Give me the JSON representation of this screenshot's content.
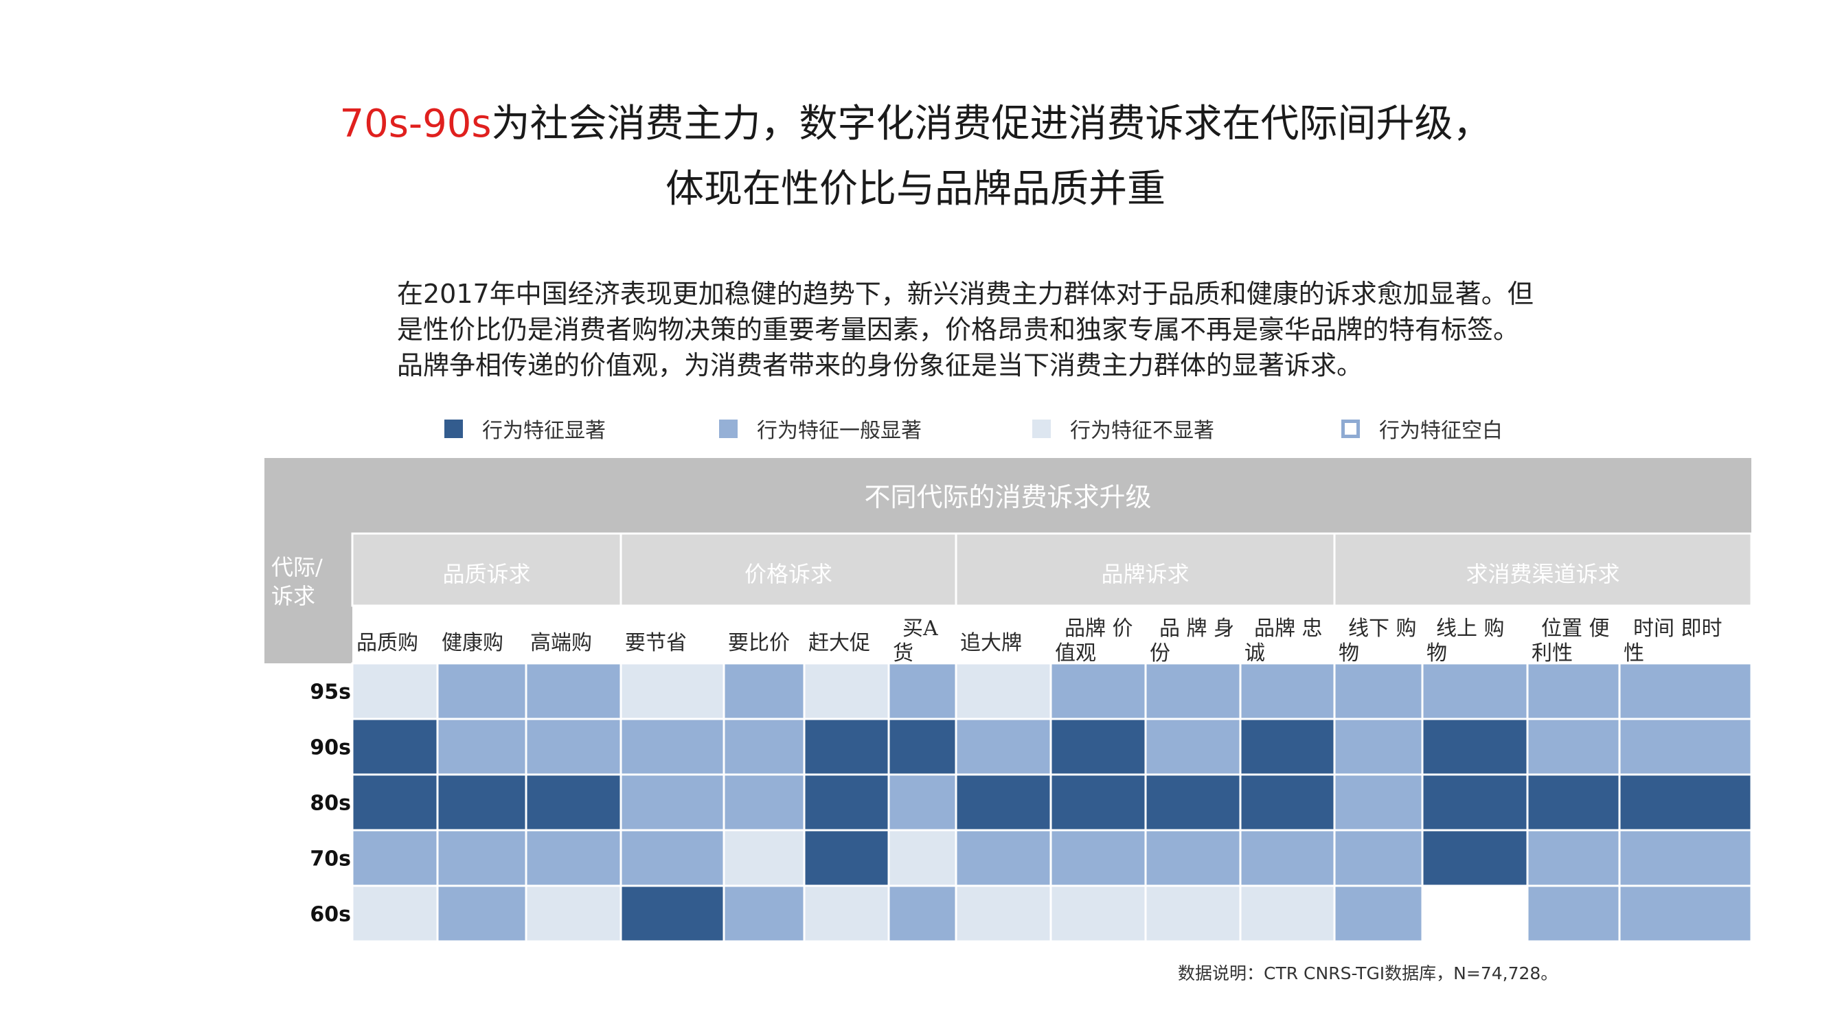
{
  "title": {
    "highlight": "70s-90s",
    "line1_rest": "为社会消费主力，数字化消费促进消费诉求在代际间升级，",
    "line2": "体现在性价比与品牌品质并重"
  },
  "intro": [
    "在2017年中国经济表现更加稳健的趋势下，新兴消费主力群体对于品质和健康的诉求愈加显著。但",
    "是性价比仍是消费者购物决策的重要考量因素，价格昂贵和独家专属不再是豪华品牌的特有标签。",
    "品牌争相传递的价值观，为消费者带来的身份象征是当下消费主力群体的显著诉求。"
  ],
  "legend": [
    {
      "label": "行为特征显著",
      "level": 3
    },
    {
      "label": "行为特征一般显著",
      "level": 2
    },
    {
      "label": "行为特征不显著",
      "level": 1
    },
    {
      "label": "行为特征空白",
      "level": 0
    }
  ],
  "colors": {
    "level3": "#335c8e",
    "level2": "#95b0d6",
    "level1": "#dde6f0",
    "level0": "#ffffff",
    "empty_swatch_border": "#8eaad2",
    "header_bg": "#bfbfbf",
    "subheader_bg": "#d9d9d9",
    "title_accent": "#e0201e"
  },
  "chart_data": {
    "type": "heatmap",
    "title": "不同代际的消费诉求升级",
    "corner_label": [
      "代际/",
      "诉求"
    ],
    "groups": [
      {
        "name": "品质诉求",
        "span": 3
      },
      {
        "name": "价格诉求",
        "span": 4
      },
      {
        "name": "品牌诉求",
        "span": 4
      },
      {
        "name": "求消费渠道诉求",
        "span": 4
      }
    ],
    "columns": [
      [
        "品质购"
      ],
      [
        "健康购"
      ],
      [
        "高端购"
      ],
      [
        "要节省"
      ],
      [
        "要比价"
      ],
      [
        "赶大促"
      ],
      [
        "买A",
        "货"
      ],
      [
        "追大牌"
      ],
      [
        "品牌 价",
        "值观"
      ],
      [
        "品 牌 身",
        "份"
      ],
      [
        "品牌 忠",
        "诚"
      ],
      [
        "线下 购",
        "物"
      ],
      [
        "线上 购",
        "物"
      ],
      [
        "位置 便",
        "利性"
      ],
      [
        "时间 即时",
        "性"
      ]
    ],
    "rows": [
      "95s",
      "90s",
      "80s",
      "70s",
      "60s"
    ],
    "values": [
      [
        1,
        2,
        2,
        1,
        2,
        1,
        2,
        1,
        2,
        2,
        2,
        2,
        2,
        2,
        2
      ],
      [
        3,
        2,
        2,
        2,
        2,
        3,
        3,
        2,
        3,
        2,
        3,
        2,
        3,
        2,
        2
      ],
      [
        3,
        3,
        3,
        2,
        2,
        3,
        2,
        3,
        3,
        3,
        3,
        2,
        3,
        3,
        3
      ],
      [
        2,
        2,
        2,
        2,
        1,
        3,
        1,
        2,
        2,
        2,
        2,
        2,
        3,
        2,
        2
      ],
      [
        1,
        2,
        1,
        3,
        2,
        1,
        2,
        1,
        1,
        1,
        1,
        2,
        0,
        2,
        2
      ]
    ],
    "scale": {
      "3": "行为特征显著",
      "2": "行为特征一般显著",
      "1": "行为特征不显著",
      "0": "行为特征空白"
    }
  },
  "source_note": "数据说明：CTR CNRS-TGI数据库，N=74,728。"
}
